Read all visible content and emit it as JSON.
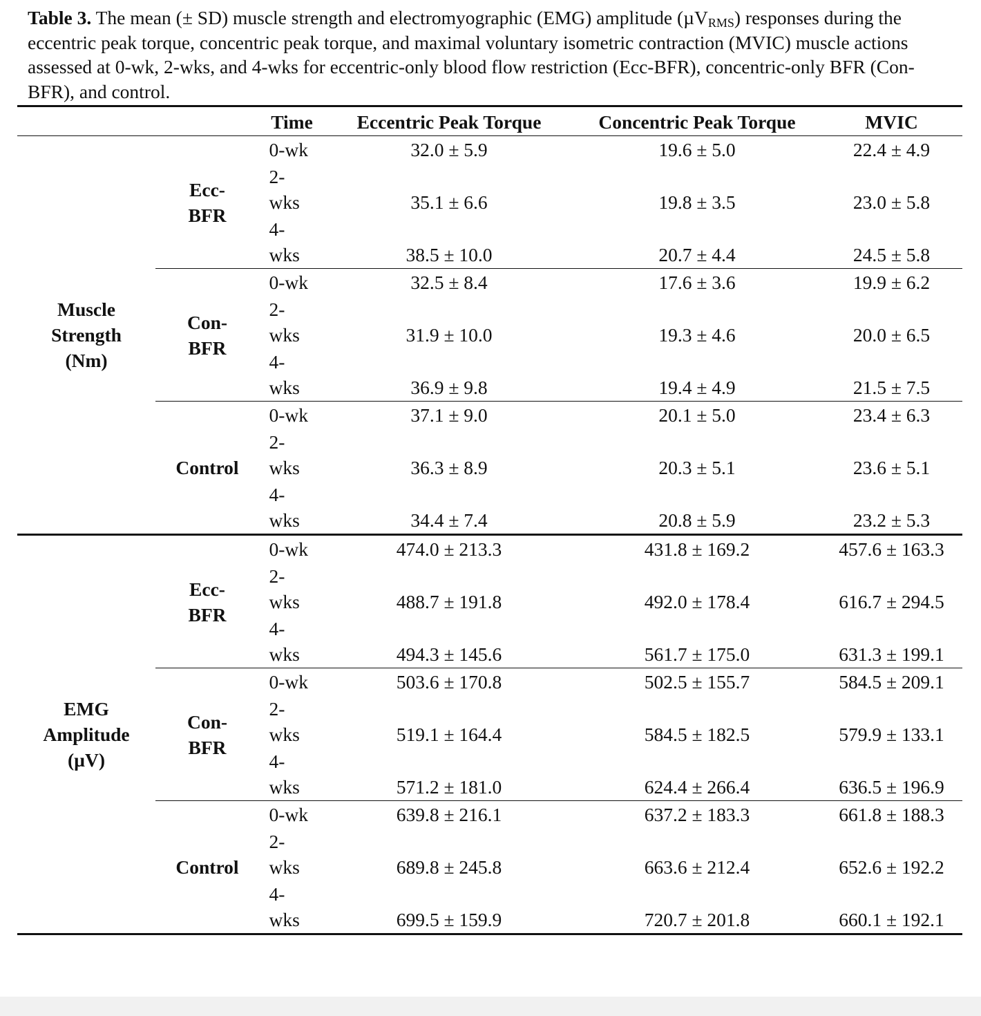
{
  "caption": {
    "label": "Table 3.",
    "text": "The mean (± SD) muscle strength and electromyographic (EMG) amplitude (µV",
    "subscript": "RMS",
    "text_end": ") responses during the eccentric peak torque, concentric peak torque, and maximal voluntary isometric contraction (MVIC) muscle actions assessed at 0-wk, 2-wks, and 4-wks for eccentric-only blood flow restriction (Ecc-BFR), concentric-only BFR (Con-BFR), and control."
  },
  "table": {
    "header": [
      "Time",
      "Eccentric Peak Torque",
      "Concentric Peak Torque",
      "MVIC"
    ],
    "sections": [
      {
        "label": "Muscle Strength (Nm)",
        "groups": [
          {
            "label": "Ecc-BFR",
            "rows": [
              [
                "0-wk",
                "32.0 ± 5.9",
                "19.6 ± 5.0",
                "22.4 ± 4.9"
              ],
              [
                "2-wks",
                "35.1 ± 6.6",
                "19.8 ± 3.5",
                "23.0 ± 5.8"
              ],
              [
                "4-wks",
                "38.5 ± 10.0",
                "20.7 ± 4.4",
                "24.5 ± 5.8"
              ]
            ]
          },
          {
            "label": "Con-BFR",
            "rows": [
              [
                "0-wk",
                "32.5 ± 8.4",
                "17.6 ± 3.6",
                "19.9 ± 6.2"
              ],
              [
                "2-wks",
                "31.9 ± 10.0",
                "19.3 ± 4.6",
                "20.0 ± 6.5"
              ],
              [
                "4-wks",
                "36.9 ± 9.8",
                "19.4 ± 4.9",
                "21.5 ± 7.5"
              ]
            ]
          },
          {
            "label": "Control",
            "rows": [
              [
                "0-wk",
                "37.1 ± 9.0",
                "20.1 ± 5.0",
                "23.4 ± 6.3"
              ],
              [
                "2-wks",
                "36.3 ± 8.9",
                "20.3 ± 5.1",
                "23.6 ± 5.1"
              ],
              [
                "4-wks",
                "34.4 ± 7.4",
                "20.8 ± 5.9",
                "23.2 ± 5.3"
              ]
            ]
          }
        ]
      },
      {
        "label": "EMG Amplitude (µV)",
        "groups": [
          {
            "label": "Ecc-BFR",
            "rows": [
              [
                "0-wk",
                "474.0 ± 213.3",
                "431.8 ± 169.2",
                "457.6 ± 163.3"
              ],
              [
                "2-wks",
                "488.7 ± 191.8",
                "492.0 ± 178.4",
                "616.7 ± 294.5"
              ],
              [
                "4-wks",
                "494.3 ± 145.6",
                "561.7 ± 175.0",
                "631.3 ± 199.1"
              ]
            ]
          },
          {
            "label": "Con-BFR",
            "rows": [
              [
                "0-wk",
                "503.6 ± 170.8",
                "502.5 ± 155.7",
                "584.5 ± 209.1"
              ],
              [
                "2-wks",
                "519.1 ± 164.4",
                "584.5 ± 182.5",
                "579.9 ± 133.1"
              ],
              [
                "4-wks",
                "571.2 ± 181.0",
                "624.4 ± 266.4",
                "636.5 ± 196.9"
              ]
            ]
          },
          {
            "label": "Control",
            "rows": [
              [
                "0-wk",
                "639.8 ± 216.1",
                "637.2 ± 183.3",
                "661.8 ± 188.3"
              ],
              [
                "2-wks",
                "689.8 ± 245.8",
                "663.6 ± 212.4",
                "652.6 ± 192.2"
              ],
              [
                "4-wks",
                "699.5 ± 159.9",
                "720.7 ± 201.8",
                "660.1 ± 192.1"
              ]
            ]
          }
        ]
      }
    ]
  }
}
